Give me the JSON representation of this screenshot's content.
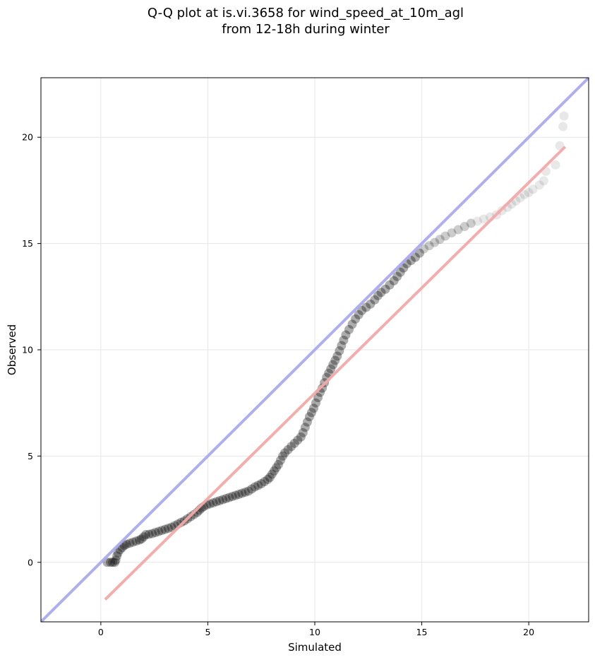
{
  "title_lines": [
    "Q-Q plot at is.vi.3658 for wind_speed_at_10m_agl",
    "from 12-18h during winter"
  ],
  "chart_data": {
    "type": "scatter",
    "title": "Q-Q plot at is.vi.3658 for wind_speed_at_10m_agl\nfrom 12-18h during winter",
    "xlabel": "Simulated",
    "ylabel": "Observed",
    "xlim": [
      -2.8,
      22.8
    ],
    "ylim": [
      -2.8,
      22.8
    ],
    "xticks": [
      0,
      5,
      10,
      15,
      20
    ],
    "yticks": [
      0,
      5,
      10,
      15,
      20
    ],
    "grid": true,
    "series": [
      {
        "kind": "points",
        "color": "#000000",
        "points": [
          [
            0.3,
            0.0
          ],
          [
            0.45,
            0.0
          ],
          [
            0.55,
            0.0
          ],
          [
            0.65,
            0.0
          ],
          [
            0.7,
            0.1
          ],
          [
            0.75,
            0.3
          ],
          [
            0.8,
            0.45
          ],
          [
            0.9,
            0.6
          ],
          [
            1.0,
            0.7
          ],
          [
            1.1,
            0.8
          ],
          [
            1.2,
            0.85
          ],
          [
            1.35,
            0.9
          ],
          [
            1.5,
            0.95
          ],
          [
            1.65,
            1.0
          ],
          [
            1.8,
            1.05
          ],
          [
            1.9,
            1.1
          ],
          [
            2.0,
            1.2
          ],
          [
            2.1,
            1.3
          ],
          [
            2.25,
            1.32
          ],
          [
            2.4,
            1.35
          ],
          [
            2.55,
            1.4
          ],
          [
            2.7,
            1.45
          ],
          [
            2.85,
            1.5
          ],
          [
            3.0,
            1.55
          ],
          [
            3.15,
            1.6
          ],
          [
            3.3,
            1.65
          ],
          [
            3.45,
            1.72
          ],
          [
            3.6,
            1.8
          ],
          [
            3.75,
            1.88
          ],
          [
            3.9,
            1.95
          ],
          [
            4.05,
            2.05
          ],
          [
            4.2,
            2.15
          ],
          [
            4.35,
            2.25
          ],
          [
            4.5,
            2.35
          ],
          [
            4.6,
            2.45
          ],
          [
            4.7,
            2.55
          ],
          [
            4.8,
            2.62
          ],
          [
            4.95,
            2.7
          ],
          [
            5.1,
            2.75
          ],
          [
            5.25,
            2.8
          ],
          [
            5.4,
            2.85
          ],
          [
            5.55,
            2.9
          ],
          [
            5.7,
            2.95
          ],
          [
            5.85,
            3.0
          ],
          [
            6.0,
            3.05
          ],
          [
            6.15,
            3.1
          ],
          [
            6.3,
            3.15
          ],
          [
            6.45,
            3.2
          ],
          [
            6.6,
            3.25
          ],
          [
            6.75,
            3.3
          ],
          [
            6.9,
            3.35
          ],
          [
            7.05,
            3.45
          ],
          [
            7.2,
            3.55
          ],
          [
            7.35,
            3.62
          ],
          [
            7.5,
            3.7
          ],
          [
            7.65,
            3.8
          ],
          [
            7.8,
            3.9
          ],
          [
            7.9,
            4.0
          ],
          [
            8.0,
            4.15
          ],
          [
            8.1,
            4.3
          ],
          [
            8.2,
            4.45
          ],
          [
            8.3,
            4.6
          ],
          [
            8.4,
            4.8
          ],
          [
            8.5,
            5.0
          ],
          [
            8.6,
            5.15
          ],
          [
            8.75,
            5.3
          ],
          [
            8.9,
            5.45
          ],
          [
            9.05,
            5.6
          ],
          [
            9.2,
            5.75
          ],
          [
            9.35,
            5.9
          ],
          [
            9.45,
            6.1
          ],
          [
            9.55,
            6.35
          ],
          [
            9.65,
            6.6
          ],
          [
            9.75,
            6.85
          ],
          [
            9.85,
            7.05
          ],
          [
            9.95,
            7.25
          ],
          [
            10.05,
            7.5
          ],
          [
            10.15,
            7.75
          ],
          [
            10.25,
            8.0
          ],
          [
            10.35,
            8.2
          ],
          [
            10.45,
            8.45
          ],
          [
            10.55,
            8.7
          ],
          [
            10.65,
            8.9
          ],
          [
            10.75,
            9.1
          ],
          [
            10.85,
            9.3
          ],
          [
            10.95,
            9.5
          ],
          [
            11.05,
            9.7
          ],
          [
            11.15,
            9.95
          ],
          [
            11.25,
            10.2
          ],
          [
            11.35,
            10.45
          ],
          [
            11.45,
            10.7
          ],
          [
            11.6,
            10.95
          ],
          [
            11.75,
            11.2
          ],
          [
            11.9,
            11.45
          ],
          [
            12.05,
            11.65
          ],
          [
            12.2,
            11.85
          ],
          [
            12.4,
            12.0
          ],
          [
            12.6,
            12.15
          ],
          [
            12.8,
            12.35
          ],
          [
            12.95,
            12.55
          ],
          [
            13.1,
            12.7
          ],
          [
            13.3,
            12.85
          ],
          [
            13.5,
            13.05
          ],
          [
            13.7,
            13.25
          ],
          [
            13.85,
            13.45
          ],
          [
            14.0,
            13.65
          ],
          [
            14.15,
            13.85
          ],
          [
            14.3,
            14.05
          ],
          [
            14.5,
            14.2
          ],
          [
            14.7,
            14.35
          ],
          [
            14.9,
            14.55
          ],
          [
            15.1,
            14.75
          ],
          [
            15.35,
            14.9
          ],
          [
            15.6,
            15.05
          ],
          [
            15.85,
            15.2
          ],
          [
            16.1,
            15.35
          ],
          [
            16.4,
            15.5
          ],
          [
            16.7,
            15.65
          ],
          [
            17.0,
            15.8
          ],
          [
            17.3,
            15.95
          ],
          [
            17.6,
            16.05
          ],
          [
            17.9,
            16.15
          ],
          [
            18.2,
            16.25
          ],
          [
            18.5,
            16.35
          ],
          [
            18.75,
            16.55
          ],
          [
            19.0,
            16.7
          ],
          [
            19.2,
            16.85
          ],
          [
            19.4,
            17.0
          ],
          [
            19.6,
            17.15
          ],
          [
            19.8,
            17.3
          ],
          [
            20.0,
            17.4
          ],
          [
            20.2,
            17.55
          ],
          [
            20.5,
            17.75
          ],
          [
            20.7,
            17.95
          ],
          [
            20.8,
            18.4
          ],
          [
            21.25,
            18.7
          ],
          [
            21.45,
            19.6
          ],
          [
            21.6,
            20.5
          ],
          [
            21.65,
            21.0
          ]
        ]
      },
      {
        "kind": "line",
        "color": "#aaaaf0",
        "points": [
          [
            -2.8,
            -2.8
          ],
          [
            22.8,
            22.8
          ]
        ]
      },
      {
        "kind": "line",
        "color": "#f4a9a8",
        "points": [
          [
            0.2,
            -1.75
          ],
          [
            21.7,
            19.55
          ]
        ]
      }
    ]
  }
}
